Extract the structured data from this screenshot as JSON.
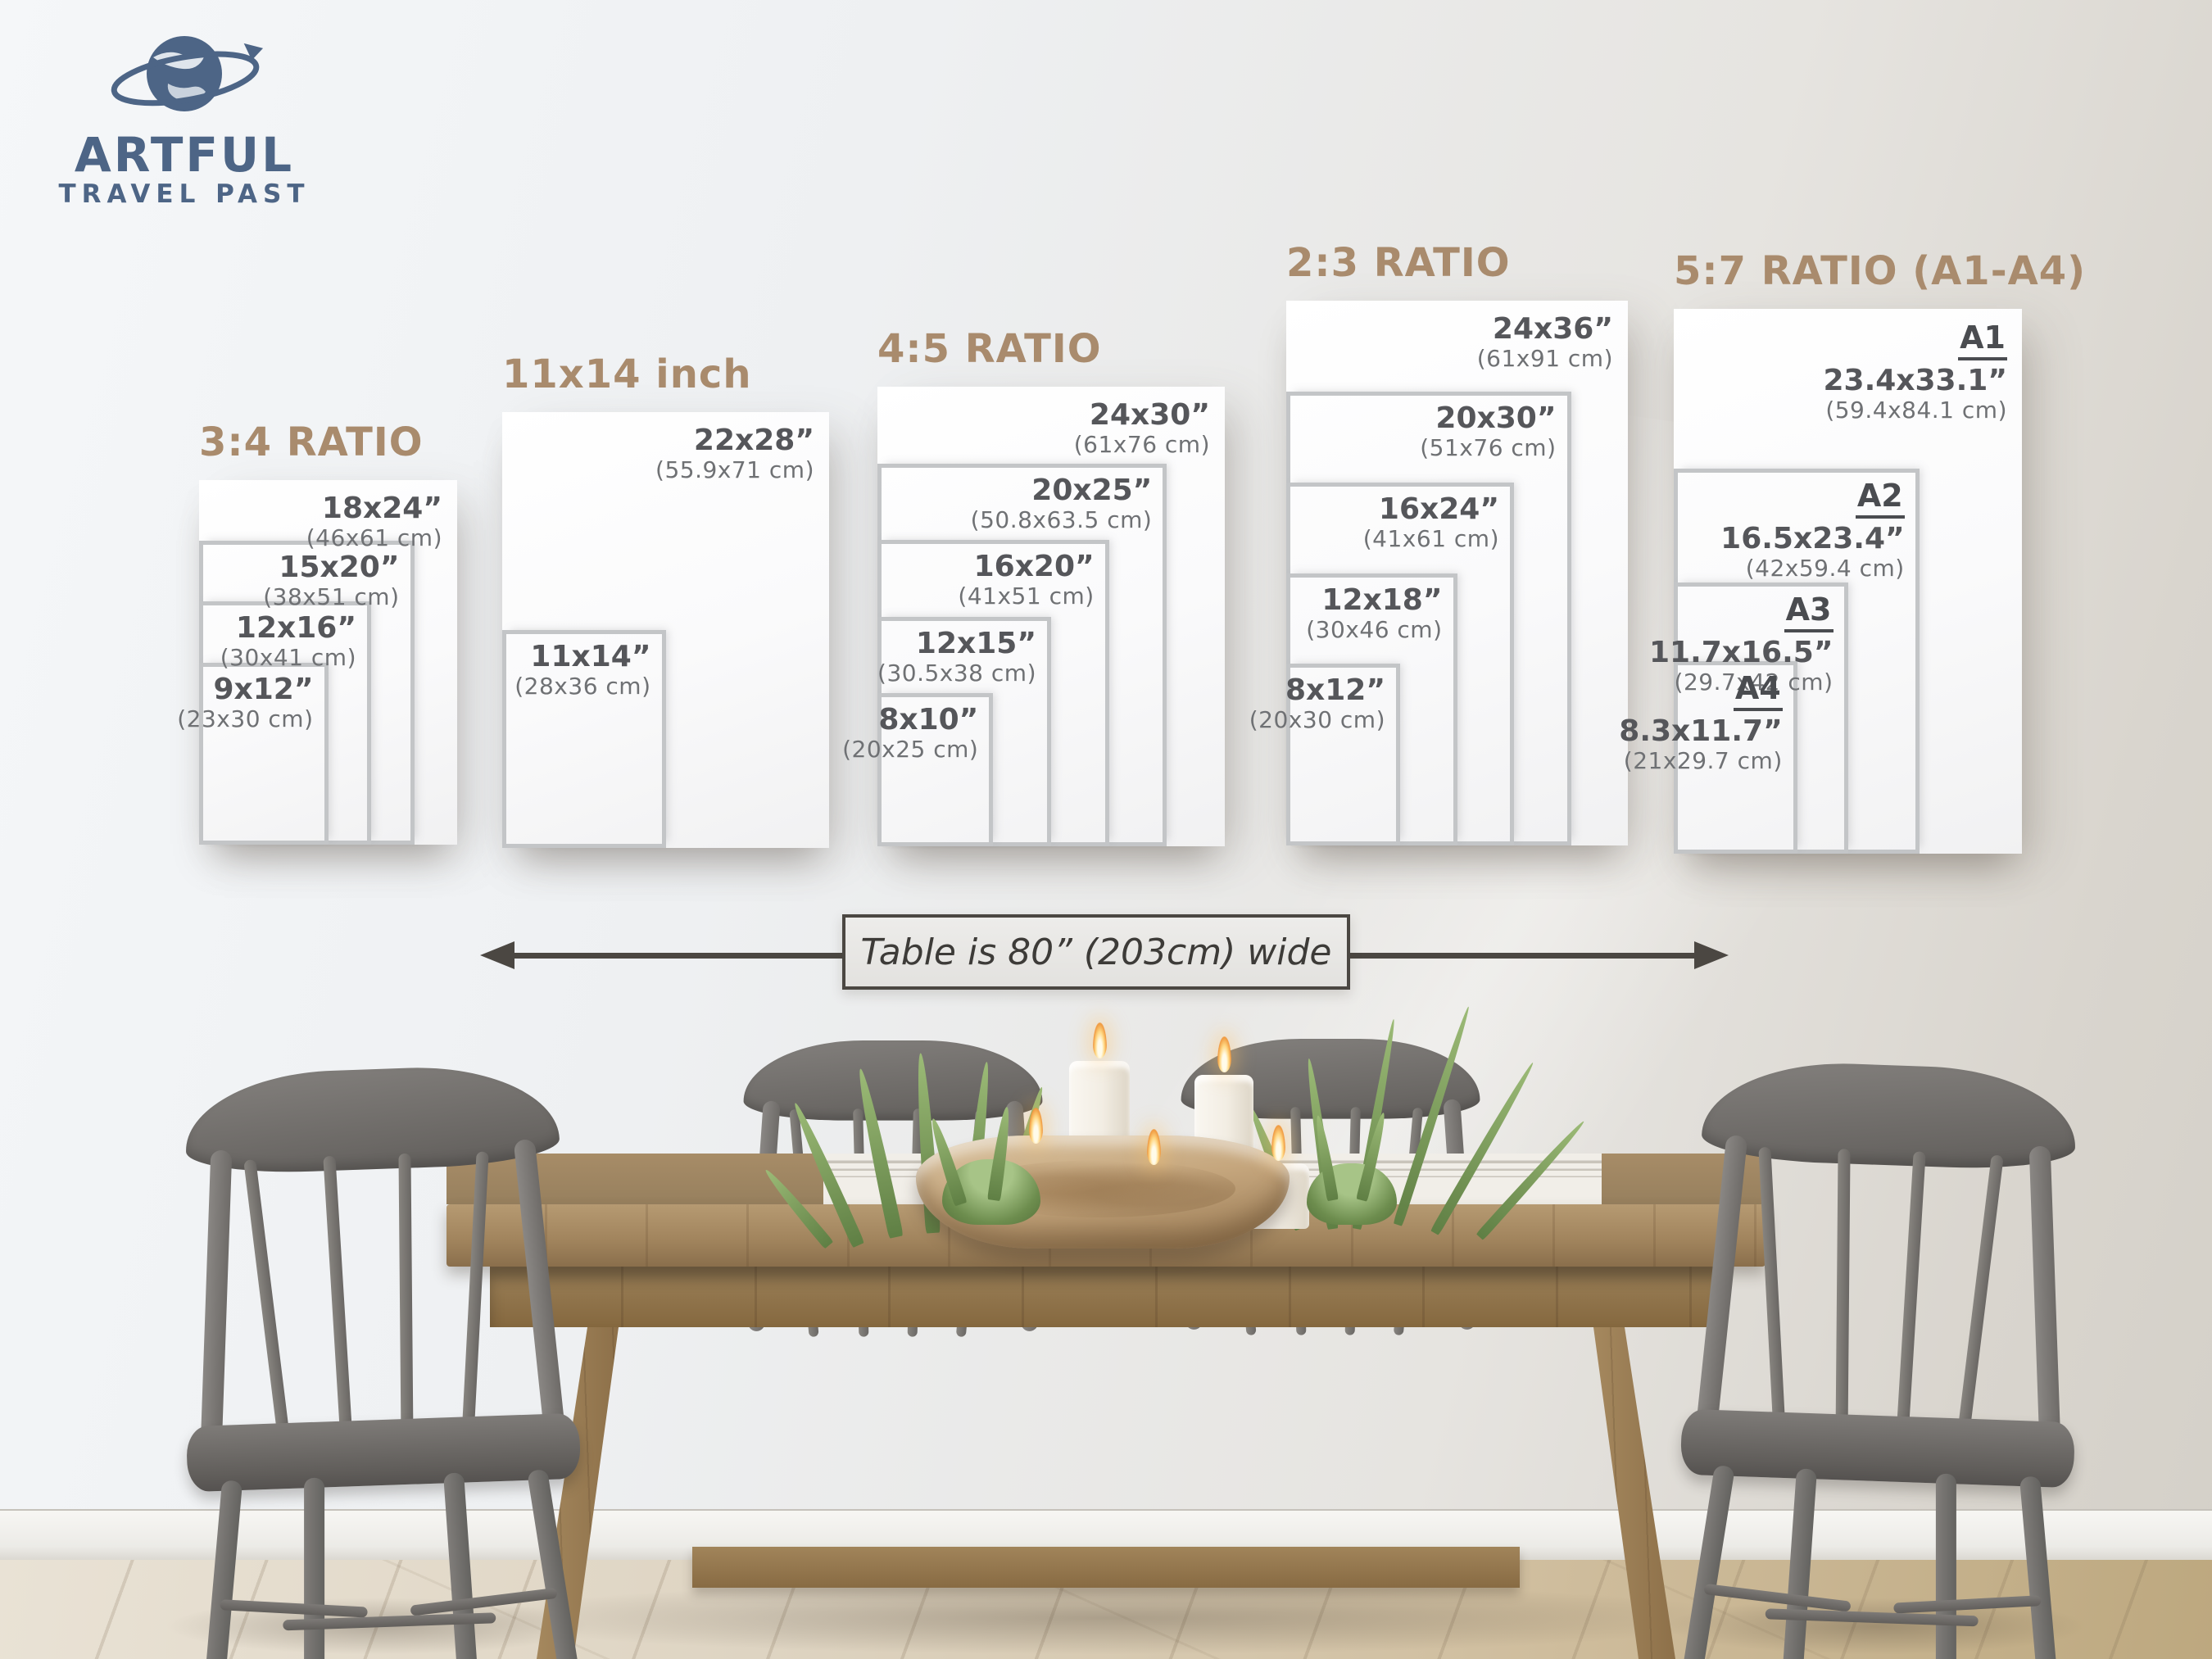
{
  "brand": {
    "line1": "ARTFUL",
    "line2": "TRAVEL PAST"
  },
  "panels": [
    {
      "id": "ratio-3-4",
      "title": "3:4 RATIO",
      "sizes": [
        {
          "inches": "18x24”",
          "cm": "(46x61 cm)",
          "w_in": 18,
          "h_in": 24
        },
        {
          "inches": "15x20”",
          "cm": "(38x51 cm)",
          "w_in": 15,
          "h_in": 20
        },
        {
          "inches": "12x16”",
          "cm": "(30x41 cm)",
          "w_in": 12,
          "h_in": 16
        },
        {
          "inches": "9x12”",
          "cm": "(23x30 cm)",
          "w_in": 9,
          "h_in": 12
        }
      ]
    },
    {
      "id": "11x14-inch",
      "title": "11x14 inch",
      "sizes": [
        {
          "inches": "22x28”",
          "cm": "(55.9x71 cm)",
          "w_in": 22,
          "h_in": 28
        },
        {
          "inches": "11x14”",
          "cm": "(28x36 cm)",
          "w_in": 11,
          "h_in": 14
        }
      ]
    },
    {
      "id": "ratio-4-5",
      "title": "4:5 RATIO",
      "sizes": [
        {
          "inches": "24x30”",
          "cm": "(61x76 cm)",
          "w_in": 24,
          "h_in": 30
        },
        {
          "inches": "20x25”",
          "cm": "(50.8x63.5 cm)",
          "w_in": 20,
          "h_in": 25
        },
        {
          "inches": "16x20”",
          "cm": "(41x51 cm)",
          "w_in": 16,
          "h_in": 20
        },
        {
          "inches": "12x15”",
          "cm": "(30.5x38 cm)",
          "w_in": 12,
          "h_in": 15
        },
        {
          "inches": "8x10”",
          "cm": "(20x25 cm)",
          "w_in": 8,
          "h_in": 10
        }
      ]
    },
    {
      "id": "ratio-2-3",
      "title": "2:3 RATIO",
      "sizes": [
        {
          "inches": "24x36”",
          "cm": "(61x91 cm)",
          "w_in": 24,
          "h_in": 36
        },
        {
          "inches": "20x30”",
          "cm": "(51x76 cm)",
          "w_in": 20,
          "h_in": 30
        },
        {
          "inches": "16x24”",
          "cm": "(41x61 cm)",
          "w_in": 16,
          "h_in": 24
        },
        {
          "inches": "12x18”",
          "cm": "(30x46 cm)",
          "w_in": 12,
          "h_in": 18
        },
        {
          "inches": "8x12”",
          "cm": "(20x30 cm)",
          "w_in": 8,
          "h_in": 12
        }
      ]
    },
    {
      "id": "ratio-5-7-a",
      "title": "5:7 RATIO (A1-A4)",
      "sizes": [
        {
          "series": "A1",
          "inches": "23.4x33.1”",
          "cm": "(59.4x84.1 cm)",
          "w_in": 23.4,
          "h_in": 33.1
        },
        {
          "series": "A2",
          "inches": "16.5x23.4”",
          "cm": "(42x59.4 cm)",
          "w_in": 16.5,
          "h_in": 23.4
        },
        {
          "series": "A3",
          "inches": "11.7x16.5”",
          "cm": "(29.7x42 cm)",
          "w_in": 11.7,
          "h_in": 16.5
        },
        {
          "series": "A4",
          "inches": "8.3x11.7”",
          "cm": "(21x29.7 cm)",
          "w_in": 8.3,
          "h_in": 11.7
        }
      ]
    }
  ],
  "table_note": {
    "text": "Table is 80” (203cm) wide"
  },
  "colors": {
    "brand_blue": "#4d6586",
    "title_tan": "#a98b6d",
    "size_text": "#55565a",
    "cm_text": "#6f7174",
    "rect_border": "#c3c5c7",
    "arrow": "#4b4742"
  }
}
